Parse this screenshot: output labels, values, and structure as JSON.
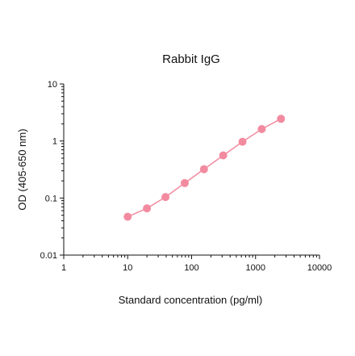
{
  "chart_data": {
    "type": "scatter",
    "title": "Rabbit IgG",
    "xlabel": "Standard concentration (pg/ml)",
    "ylabel": "OD (405-650 nm)",
    "xscale": "log",
    "yscale": "log",
    "xlim": [
      1,
      10000
    ],
    "ylim": [
      0.01,
      10
    ],
    "x_ticks": [
      "1",
      "10",
      "100",
      "1000",
      "10000"
    ],
    "y_ticks": [
      "0.01",
      "0.1",
      "1",
      "10"
    ],
    "grid": false,
    "legend": "none",
    "series": [
      {
        "x": [
          10,
          20,
          39,
          78,
          156,
          312,
          625,
          1250,
          2500
        ],
        "y": [
          0.047,
          0.066,
          0.104,
          0.183,
          0.32,
          0.56,
          0.97,
          1.62,
          2.45
        ],
        "color": "#f28ba0",
        "line": true,
        "markers": true
      }
    ]
  }
}
